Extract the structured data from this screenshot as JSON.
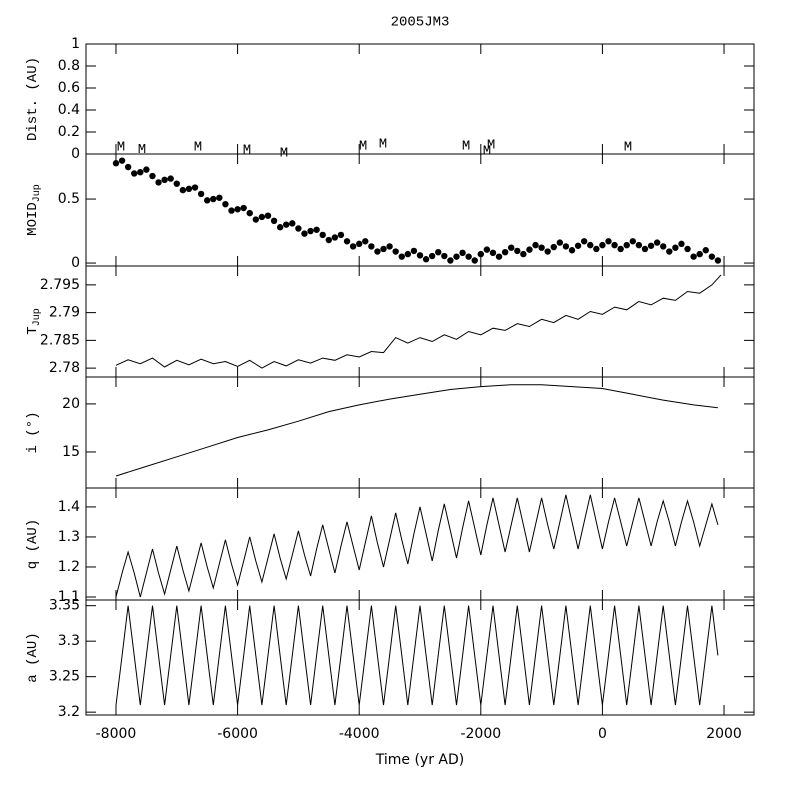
{
  "chart_data": [
    {
      "type": "scatter",
      "title": "2005JM3",
      "ylabel": "Dist. (AU)",
      "color": "#000000",
      "xlim": [
        -8493,
        2493
      ],
      "ylim": [
        0,
        1
      ],
      "yticks": [
        0,
        0.2,
        0.4,
        0.6,
        0.8,
        1
      ],
      "points": [
        {
          "label": "M",
          "x": -7918,
          "y": 0.064
        },
        {
          "label": "M",
          "x": -7572,
          "y": 0.045
        },
        {
          "label": "M",
          "x": -6651,
          "y": 0.064
        },
        {
          "label": "M",
          "x": -5845,
          "y": 0.036
        },
        {
          "label": "M",
          "x": -5237,
          "y": 0.009
        },
        {
          "label": "M",
          "x": -3937,
          "y": 0.073
        },
        {
          "label": "M",
          "x": -3609,
          "y": 0.091
        },
        {
          "label": "M",
          "x": -2243,
          "y": 0.073
        },
        {
          "label": "M",
          "x": -1898,
          "y": 0.027
        },
        {
          "label": "M",
          "x": -1832,
          "y": 0.082
        },
        {
          "label": "M",
          "x": 421,
          "y": 0.064
        }
      ]
    },
    {
      "type": "scatter",
      "ylabel": "MOID",
      "ylabel_sub": "Jup",
      "color": "#000000",
      "xlim": [
        -8493,
        2493
      ],
      "ylim": [
        -0.023,
        0.852
      ],
      "yticks": [
        0,
        0.5
      ],
      "x": [
        -8000,
        -7900,
        -7800,
        -7700,
        -7600,
        -7500,
        -7400,
        -7300,
        -7200,
        -7100,
        -7000,
        -6900,
        -6800,
        -6700,
        -6600,
        -6500,
        -6400,
        -6300,
        -6200,
        -6100,
        -6000,
        -5900,
        -5800,
        -5700,
        -5600,
        -5500,
        -5400,
        -5300,
        -5200,
        -5100,
        -5000,
        -4900,
        -4800,
        -4700,
        -4600,
        -4500,
        -4400,
        -4300,
        -4200,
        -4100,
        -4000,
        -3900,
        -3800,
        -3700,
        -3600,
        -3500,
        -3400,
        -3300,
        -3200,
        -3100,
        -3000,
        -2900,
        -2800,
        -2700,
        -2600,
        -2500,
        -2400,
        -2300,
        -2200,
        -2100,
        -2000,
        -1900,
        -1800,
        -1700,
        -1600,
        -1500,
        -1400,
        -1300,
        -1200,
        -1100,
        -1000,
        -900,
        -800,
        -700,
        -600,
        -500,
        -400,
        -300,
        -200,
        -100,
        0,
        100,
        200,
        300,
        400,
        500,
        600,
        700,
        800,
        900,
        1000,
        1100,
        1200,
        1300,
        1400,
        1500,
        1600,
        1700,
        1800,
        1900
      ],
      "values": [
        0.78,
        0.8,
        0.75,
        0.7,
        0.71,
        0.73,
        0.68,
        0.63,
        0.65,
        0.66,
        0.62,
        0.57,
        0.58,
        0.59,
        0.54,
        0.49,
        0.5,
        0.51,
        0.46,
        0.41,
        0.42,
        0.43,
        0.39,
        0.34,
        0.36,
        0.37,
        0.33,
        0.28,
        0.3,
        0.31,
        0.27,
        0.23,
        0.25,
        0.26,
        0.22,
        0.18,
        0.2,
        0.22,
        0.17,
        0.13,
        0.15,
        0.17,
        0.13,
        0.09,
        0.11,
        0.13,
        0.09,
        0.05,
        0.07,
        0.095,
        0.06,
        0.03,
        0.055,
        0.085,
        0.055,
        0.02,
        0.05,
        0.08,
        0.05,
        0.02,
        0.07,
        0.105,
        0.08,
        0.05,
        0.085,
        0.12,
        0.095,
        0.07,
        0.105,
        0.14,
        0.12,
        0.09,
        0.125,
        0.16,
        0.13,
        0.1,
        0.135,
        0.17,
        0.14,
        0.11,
        0.14,
        0.17,
        0.14,
        0.11,
        0.14,
        0.17,
        0.14,
        0.11,
        0.135,
        0.16,
        0.13,
        0.09,
        0.12,
        0.15,
        0.11,
        0.05,
        0.07,
        0.1,
        0.05,
        0.02
      ]
    },
    {
      "type": "line",
      "ylabel": "T",
      "ylabel_sub": "Jup",
      "color": "#000000",
      "xlim": [
        -8493,
        2493
      ],
      "ylim": [
        2.7784,
        2.7984
      ],
      "yticks": [
        2.78,
        2.785,
        2.79,
        2.795
      ],
      "x": [
        -8000,
        -7800,
        -7600,
        -7400,
        -7200,
        -7000,
        -6800,
        -6600,
        -6400,
        -6200,
        -6000,
        -5800,
        -5600,
        -5400,
        -5200,
        -5000,
        -4800,
        -4600,
        -4400,
        -4200,
        -4000,
        -3800,
        -3600,
        -3400,
        -3200,
        -3000,
        -2800,
        -2600,
        -2400,
        -2200,
        -2000,
        -1800,
        -1600,
        -1400,
        -1200,
        -1000,
        -800,
        -600,
        -400,
        -200,
        0,
        200,
        400,
        600,
        800,
        1000,
        1200,
        1400,
        1600,
        1800,
        1950
      ],
      "values": [
        2.7805,
        2.7815,
        2.7808,
        2.7818,
        2.7802,
        2.7814,
        2.7806,
        2.7816,
        2.7808,
        2.7812,
        2.7803,
        2.7814,
        2.78,
        2.7812,
        2.7804,
        2.7815,
        2.7809,
        2.7818,
        2.7814,
        2.7824,
        2.782,
        2.783,
        2.7828,
        2.7855,
        2.7845,
        2.7855,
        2.7848,
        2.786,
        2.7852,
        2.7866,
        2.786,
        2.7872,
        2.7868,
        2.788,
        2.7875,
        2.7888,
        2.7882,
        2.7895,
        2.7888,
        2.7902,
        2.7897,
        2.791,
        2.7905,
        2.792,
        2.7914,
        2.7926,
        2.7922,
        2.7938,
        2.7935,
        2.795,
        2.7968
      ]
    },
    {
      "type": "line",
      "ylabel": "i (°)",
      "color": "#000000",
      "xlim": [
        -8493,
        2493
      ],
      "ylim": [
        11.25,
        22.8
      ],
      "yticks": [
        15,
        20
      ],
      "x": [
        -8000,
        -7500,
        -7000,
        -6500,
        -6000,
        -5500,
        -5000,
        -4500,
        -4000,
        -3500,
        -3000,
        -2500,
        -2000,
        -1500,
        -1000,
        -500,
        0,
        500,
        1000,
        1500,
        1900
      ],
      "values": [
        12.5,
        13.5,
        14.5,
        15.5,
        16.5,
        17.3,
        18.2,
        19.2,
        19.9,
        20.5,
        21.0,
        21.5,
        21.8,
        22.0,
        22.0,
        21.8,
        21.6,
        21.0,
        20.4,
        19.9,
        19.6
      ]
    },
    {
      "type": "line",
      "ylabel": "q (AU)",
      "color": "#000000",
      "xlim": [
        -8493,
        2493
      ],
      "ylim": [
        1.09,
        1.463
      ],
      "yticks": [
        1.1,
        1.2,
        1.3,
        1.4
      ],
      "x": [
        -8000,
        -7900,
        -7800,
        -7700,
        -7600,
        -7500,
        -7400,
        -7300,
        -7200,
        -7100,
        -7000,
        -6900,
        -6800,
        -6700,
        -6600,
        -6500,
        -6400,
        -6300,
        -6200,
        -6100,
        -6000,
        -5900,
        -5800,
        -5700,
        -5600,
        -5500,
        -5400,
        -5300,
        -5200,
        -5100,
        -5000,
        -4900,
        -4800,
        -4700,
        -4600,
        -4500,
        -4400,
        -4300,
        -4200,
        -4100,
        -4000,
        -3900,
        -3800,
        -3700,
        -3600,
        -3500,
        -3400,
        -3300,
        -3200,
        -3100,
        -3000,
        -2900,
        -2800,
        -2700,
        -2600,
        -2500,
        -2400,
        -2300,
        -2200,
        -2100,
        -2000,
        -1900,
        -1800,
        -1700,
        -1600,
        -1500,
        -1400,
        -1300,
        -1200,
        -1100,
        -1000,
        -900,
        -800,
        -700,
        -600,
        -500,
        -400,
        -300,
        -200,
        -100,
        0,
        100,
        200,
        300,
        400,
        500,
        600,
        700,
        800,
        900,
        1000,
        1100,
        1200,
        1300,
        1400,
        1500,
        1600,
        1700,
        1800,
        1900
      ],
      "values": [
        1.1,
        1.18,
        1.25,
        1.18,
        1.1,
        1.18,
        1.26,
        1.18,
        1.11,
        1.19,
        1.27,
        1.19,
        1.12,
        1.2,
        1.28,
        1.2,
        1.13,
        1.21,
        1.29,
        1.21,
        1.14,
        1.22,
        1.3,
        1.22,
        1.15,
        1.23,
        1.31,
        1.23,
        1.16,
        1.24,
        1.32,
        1.24,
        1.17,
        1.26,
        1.34,
        1.26,
        1.18,
        1.27,
        1.35,
        1.27,
        1.19,
        1.28,
        1.37,
        1.28,
        1.2,
        1.29,
        1.38,
        1.29,
        1.21,
        1.31,
        1.4,
        1.31,
        1.22,
        1.32,
        1.41,
        1.32,
        1.23,
        1.33,
        1.42,
        1.33,
        1.24,
        1.34,
        1.43,
        1.34,
        1.25,
        1.34,
        1.43,
        1.34,
        1.25,
        1.34,
        1.43,
        1.34,
        1.26,
        1.35,
        1.44,
        1.35,
        1.26,
        1.35,
        1.44,
        1.35,
        1.26,
        1.35,
        1.43,
        1.35,
        1.27,
        1.35,
        1.43,
        1.35,
        1.27,
        1.35,
        1.42,
        1.35,
        1.27,
        1.35,
        1.42,
        1.35,
        1.27,
        1.34,
        1.41,
        1.34
      ]
    },
    {
      "type": "line",
      "ylabel": "a (AU)",
      "xlabel": "Time (yr AD)",
      "color": "#000000",
      "xlim": [
        -8493,
        2493
      ],
      "ylim": [
        3.196,
        3.358
      ],
      "yticks": [
        3.2,
        3.25,
        3.3,
        3.35
      ],
      "xticks": [
        -8000,
        -6000,
        -4000,
        -2000,
        0,
        2000
      ],
      "x": [
        -8000,
        -7900,
        -7800,
        -7700,
        -7600,
        -7500,
        -7400,
        -7300,
        -7200,
        -7100,
        -7000,
        -6900,
        -6800,
        -6700,
        -6600,
        -6500,
        -6400,
        -6300,
        -6200,
        -6100,
        -6000,
        -5900,
        -5800,
        -5700,
        -5600,
        -5500,
        -5400,
        -5300,
        -5200,
        -5100,
        -5000,
        -4900,
        -4800,
        -4700,
        -4600,
        -4500,
        -4400,
        -4300,
        -4200,
        -4100,
        -4000,
        -3900,
        -3800,
        -3700,
        -3600,
        -3500,
        -3400,
        -3300,
        -3200,
        -3100,
        -3000,
        -2900,
        -2800,
        -2700,
        -2600,
        -2500,
        -2400,
        -2300,
        -2200,
        -2100,
        -2000,
        -1900,
        -1800,
        -1700,
        -1600,
        -1500,
        -1400,
        -1300,
        -1200,
        -1100,
        -1000,
        -900,
        -800,
        -700,
        -600,
        -500,
        -400,
        -300,
        -200,
        -100,
        0,
        100,
        200,
        300,
        400,
        500,
        600,
        700,
        800,
        900,
        1000,
        1100,
        1200,
        1300,
        1400,
        1500,
        1600,
        1700,
        1800,
        1900
      ],
      "values": [
        3.21,
        3.28,
        3.35,
        3.28,
        3.21,
        3.28,
        3.35,
        3.28,
        3.21,
        3.28,
        3.35,
        3.28,
        3.21,
        3.28,
        3.35,
        3.28,
        3.21,
        3.28,
        3.35,
        3.28,
        3.21,
        3.28,
        3.35,
        3.28,
        3.21,
        3.28,
        3.35,
        3.28,
        3.21,
        3.28,
        3.35,
        3.28,
        3.21,
        3.28,
        3.35,
        3.28,
        3.21,
        3.28,
        3.35,
        3.28,
        3.21,
        3.28,
        3.35,
        3.28,
        3.21,
        3.28,
        3.35,
        3.28,
        3.21,
        3.28,
        3.35,
        3.28,
        3.21,
        3.28,
        3.35,
        3.28,
        3.21,
        3.28,
        3.35,
        3.28,
        3.21,
        3.28,
        3.35,
        3.28,
        3.21,
        3.28,
        3.35,
        3.28,
        3.21,
        3.28,
        3.35,
        3.28,
        3.21,
        3.28,
        3.35,
        3.28,
        3.21,
        3.28,
        3.35,
        3.28,
        3.21,
        3.28,
        3.35,
        3.28,
        3.21,
        3.28,
        3.35,
        3.28,
        3.21,
        3.28,
        3.35,
        3.28,
        3.21,
        3.28,
        3.35,
        3.28,
        3.21,
        3.28,
        3.35,
        3.28
      ]
    }
  ]
}
